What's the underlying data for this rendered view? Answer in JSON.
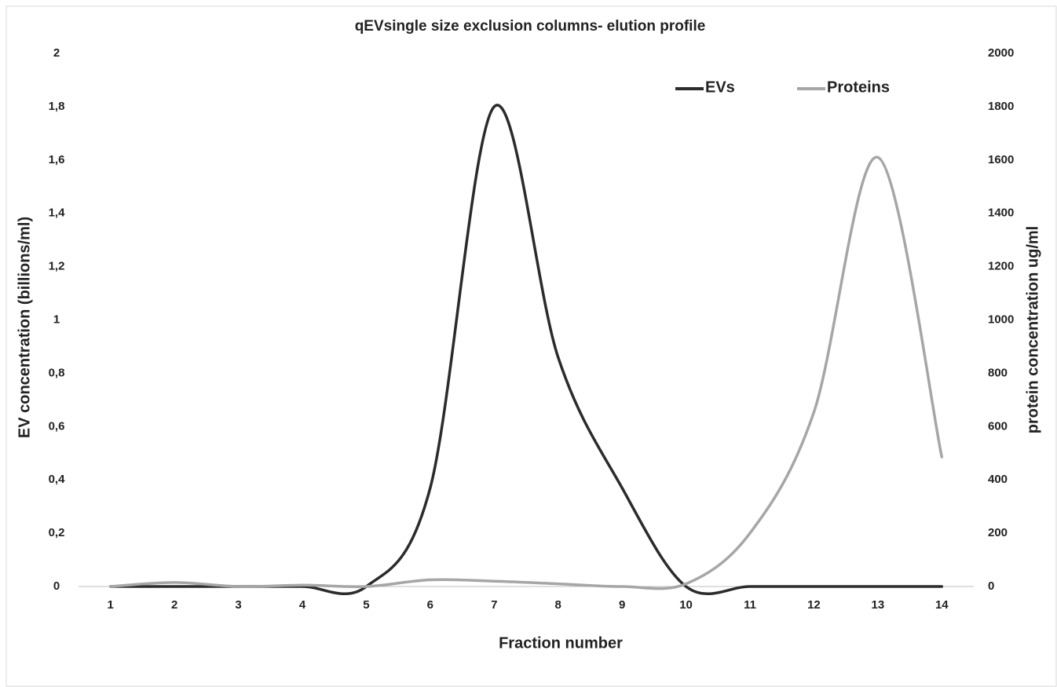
{
  "chart_data": {
    "type": "line",
    "title": "qEVsingle size exclusion columns- elution profile",
    "x_label": "Fraction number",
    "y_label": "EV concentration (billions/ml)",
    "y2_label": "protein concentration ug/ml",
    "categories": [
      "1",
      "2",
      "3",
      "4",
      "5",
      "6",
      "7",
      "8",
      "9",
      "10",
      "11",
      "12",
      "13",
      "14"
    ],
    "series": [
      {
        "name": "EVs",
        "color": "#2b2b2b",
        "axis": "y",
        "values": [
          0,
          0,
          0,
          0,
          0,
          0.37,
          1.8,
          0.86,
          0.37,
          0,
          0,
          0,
          0,
          0
        ]
      },
      {
        "name": "Proteins",
        "color": "#a6a6a6",
        "axis": "y2",
        "values": [
          0,
          15,
          0,
          5,
          0,
          25,
          20,
          10,
          0,
          10,
          200,
          654,
          1610,
          486
        ]
      }
    ],
    "ylim": [
      0,
      2
    ],
    "yticks": [
      0,
      {
        "value": 0.2,
        "label": "0,2"
      },
      {
        "value": 0.4,
        "label": "0,4"
      },
      {
        "value": 0.6,
        "label": "0,6"
      },
      {
        "value": 0.8,
        "label": "0,8"
      },
      1,
      {
        "value": 1.2,
        "label": "1,2"
      },
      {
        "value": 1.4,
        "label": "1,4"
      },
      {
        "value": 1.6,
        "label": "1,6"
      },
      {
        "value": 1.8,
        "label": "1,8"
      },
      2
    ],
    "y2lim": [
      0,
      2000
    ],
    "y2ticks": [
      0,
      200,
      400,
      600,
      800,
      1000,
      1200,
      1400,
      1600,
      1800,
      2000
    ],
    "grid": false,
    "legend": "top-right",
    "smooth": true
  }
}
